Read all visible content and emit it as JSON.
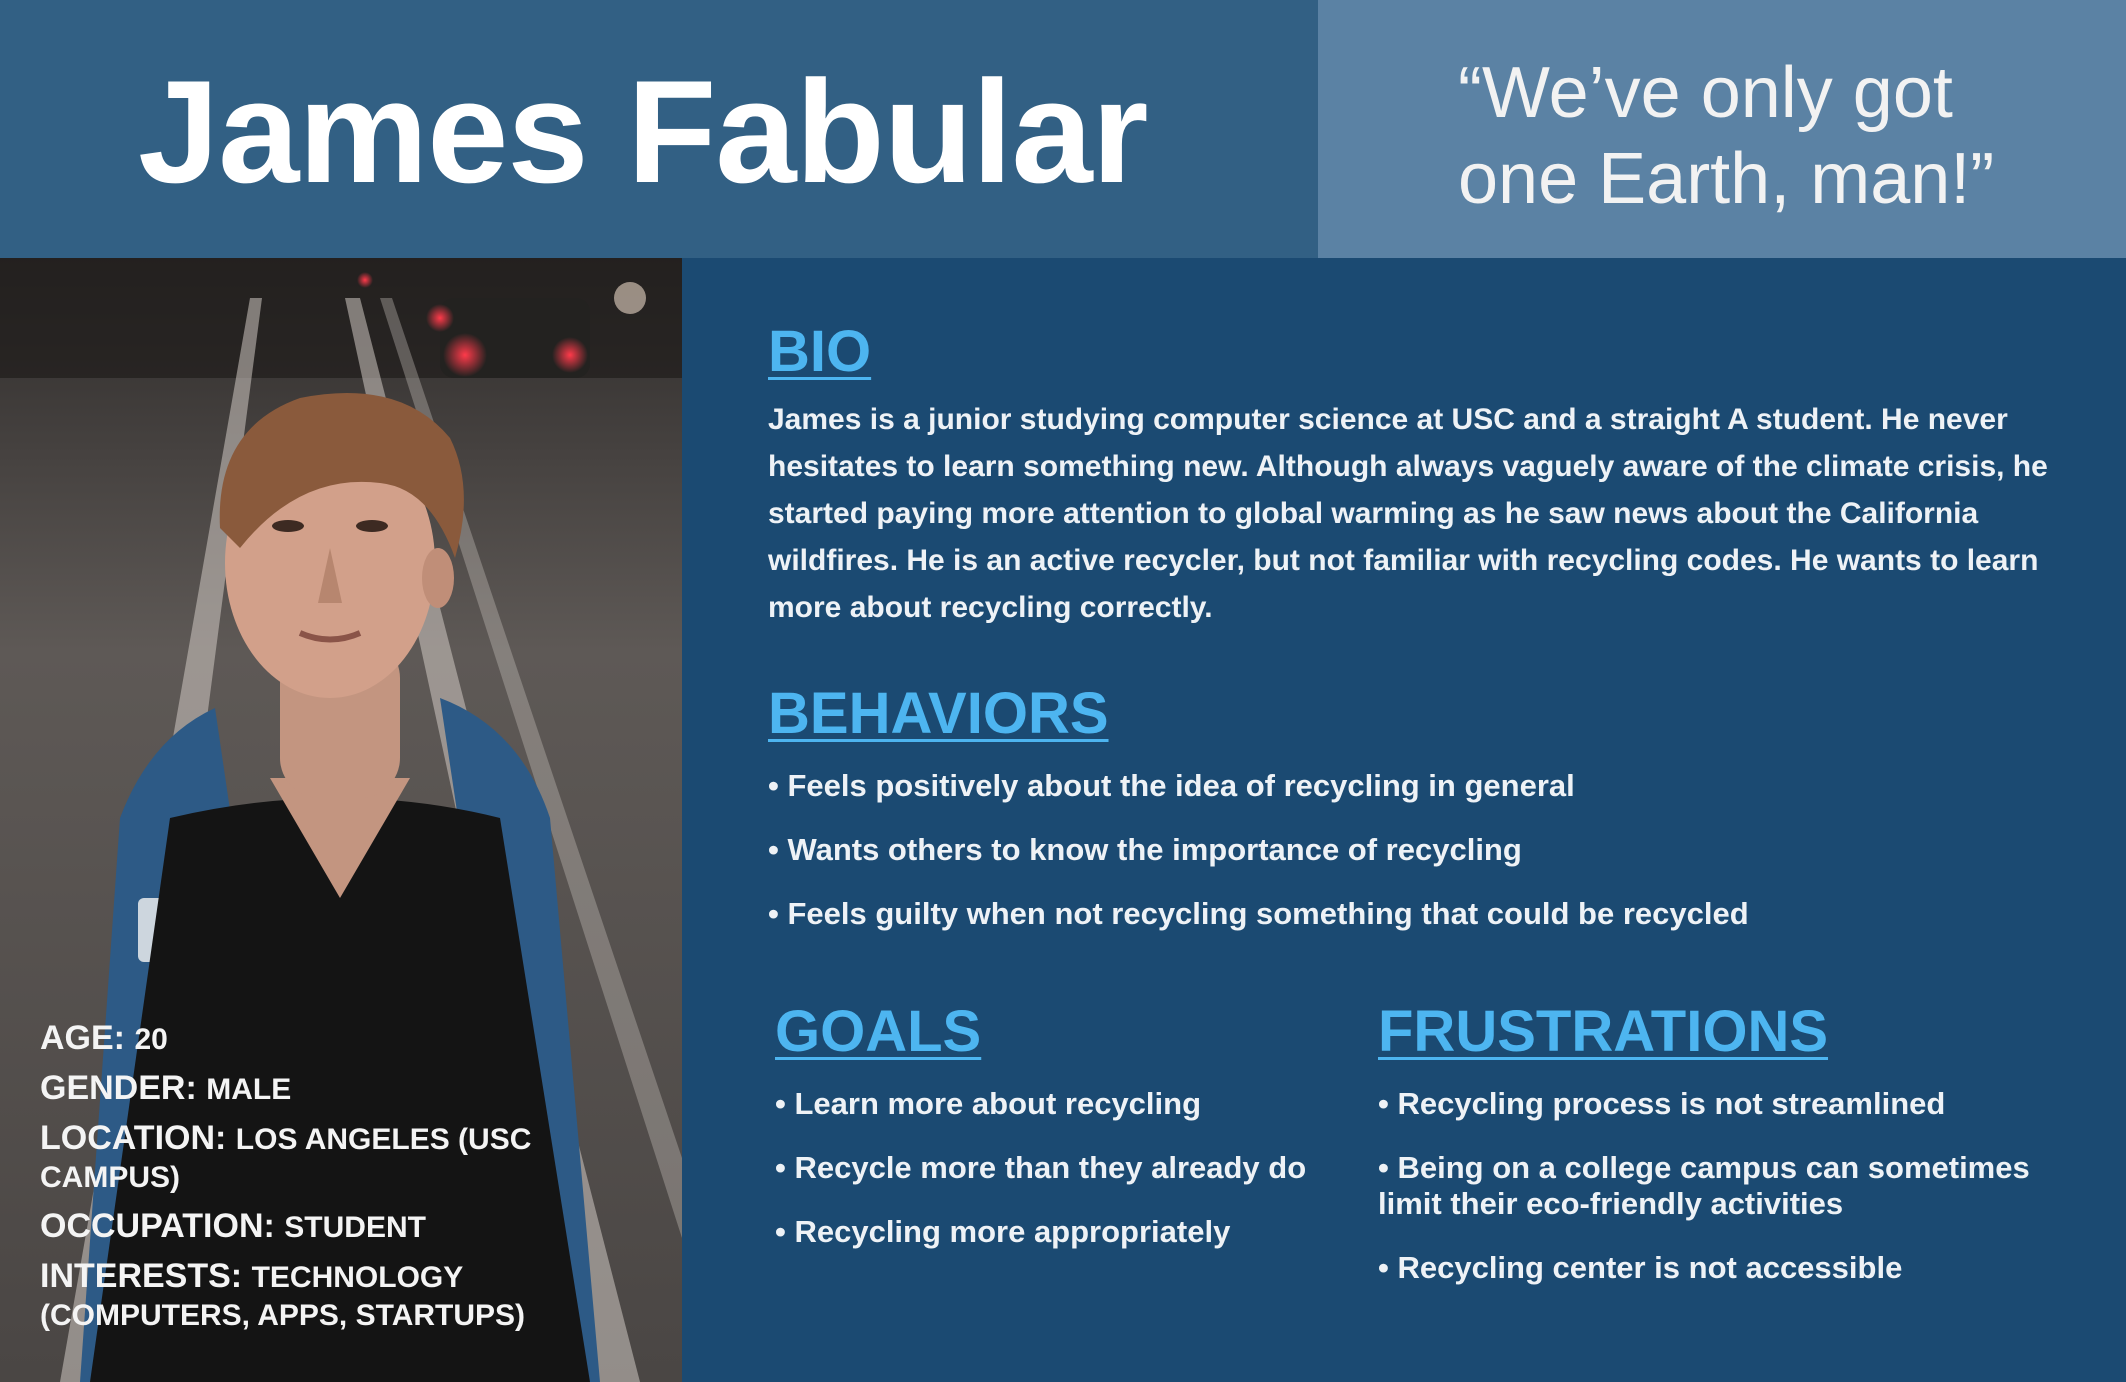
{
  "persona": {
    "name": "James Fabular",
    "quote_line1": "“We’ve only got",
    "quote_line2": "one Earth, man!”"
  },
  "stats": [
    {
      "label": "AGE:",
      "value": "20"
    },
    {
      "label": "GENDER:",
      "value": "MALE"
    },
    {
      "label": "LOCATION:",
      "value": "LOS ANGELES (USC CAMPUS)"
    },
    {
      "label": "OCCUPATION:",
      "value": "STUDENT"
    },
    {
      "label": "INTERESTS:",
      "value": "TECHNOLOGY (COMPUTERS, APPS, STARTUPS)"
    }
  ],
  "bio": {
    "title": "BIO",
    "text": "James is a junior studying computer science at USC and a straight A student. He never hesitates to learn something new. Although always vaguely aware of the climate crisis, he started paying more attention to global warming as he saw news about the California wildfires. He is an active recycler, but not familiar with recycling codes. He wants to learn more about recycling correctly."
  },
  "behaviors": {
    "title": "BEHAVIORS",
    "items": [
      "• Feels positively about the idea of recycling in general",
      "• Wants others to know the importance of recycling",
      "• Feels guilty when not recycling something that could be recycled"
    ]
  },
  "goals": {
    "title": "GOALS",
    "items": [
      "• Learn more about recycling",
      "• Recycle more than they already do",
      "• Recycling more appropriately"
    ]
  },
  "frustrations": {
    "title": "FRUSTRATIONS",
    "items": [
      "• Recycling process is not streamlined",
      "• Being on a college campus can sometimes limit their eco-friendly activities",
      "• Recycling center is not accessible"
    ]
  },
  "colors": {
    "header_bg": "#326084",
    "quote_bg": "#5b82a4",
    "main_bg": "#1b4a72",
    "heading_accent": "#4db5f0"
  }
}
